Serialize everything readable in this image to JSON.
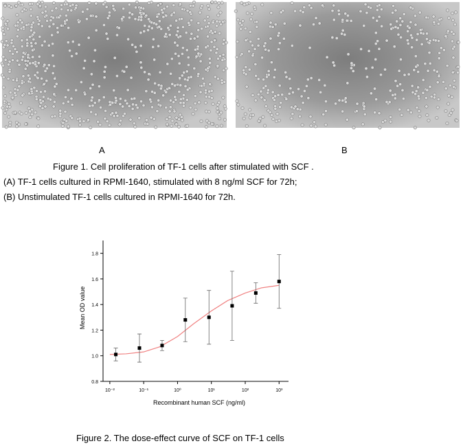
{
  "figure1": {
    "panels": [
      {
        "label": "A"
      },
      {
        "label": "B"
      }
    ],
    "caption": "Figure 1. Cell proliferation of TF-1 cells after stimulated with SCF .",
    "legend": [
      "(A) TF-1 cells cultured in RPMI-1640, stimulated with 8 ng/ml SCF for 72h;",
      "(B) Unstimulated TF-1 cells cultured in RPMI-1640 for 72h."
    ]
  },
  "chart_data": {
    "type": "scatter",
    "xlabel": "Recombinant human SCF (ng/ml)",
    "ylabel": "Mean OD value",
    "xscale": "log",
    "xlim": [
      0.0063,
      1900
    ],
    "ylim": [
      0.8,
      1.9
    ],
    "xticks": [
      {
        "value": 0.01,
        "label": "10⁻²"
      },
      {
        "value": 0.1,
        "label": "10⁻¹"
      },
      {
        "value": 1,
        "label": "10⁰"
      },
      {
        "value": 10,
        "label": "10¹"
      },
      {
        "value": 100,
        "label": "10²"
      },
      {
        "value": 1000,
        "label": "10³"
      }
    ],
    "yticks": [
      0.8,
      {
        "value": 1,
        "label": "1.0"
      },
      1.2,
      1.4,
      1.6,
      1.8
    ],
    "series": [
      {
        "color": "#000000",
        "x": [
          0.015,
          0.075,
          0.35,
          1.7,
          8.5,
          41,
          205,
          1000
        ],
        "values": [
          1.01,
          1.06,
          1.08,
          1.28,
          1.3,
          1.39,
          1.49,
          1.58
        ],
        "errors": [
          0.05,
          0.11,
          0.04,
          0.17,
          0.21,
          0.27,
          0.08,
          0.21
        ]
      }
    ],
    "fit": {
      "color": "#f08080",
      "x": [
        0.01,
        0.03,
        0.1,
        0.3,
        1,
        3,
        10,
        30,
        100,
        300,
        1000
      ],
      "values": [
        1.01,
        1.015,
        1.03,
        1.07,
        1.15,
        1.25,
        1.35,
        1.43,
        1.49,
        1.53,
        1.55
      ]
    }
  },
  "figure2": {
    "caption": "Figure 2. The dose-effect curve of SCF on TF-1 cells"
  }
}
